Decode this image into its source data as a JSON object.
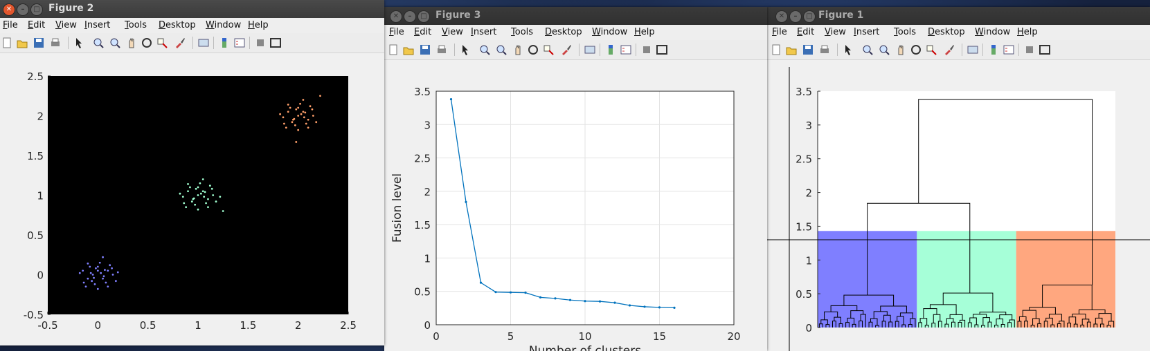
{
  "menu_items": [
    "File",
    "Edit",
    "View",
    "Insert",
    "Tools",
    "Desktop",
    "Window",
    "Help"
  ],
  "icons": [
    "new-icon",
    "open-icon",
    "save-icon",
    "print-icon",
    "pointer-icon",
    "zoom-in-icon",
    "zoom-out-icon",
    "pan-icon",
    "rotate-icon",
    "data-cursor-icon",
    "brush-icon",
    "link-icon",
    "colorbar-icon",
    "legend-icon",
    "hide-tools-icon",
    "show-tools-icon"
  ],
  "figure2": {
    "title": "Figure 2",
    "chart_data": {
      "type": "scatter",
      "background": "#000000",
      "xlim": [
        -0.5,
        2.5
      ],
      "ylim": [
        -0.5,
        2.5
      ],
      "xticks": [
        -0.5,
        0,
        0.5,
        1,
        1.5,
        2,
        2.5
      ],
      "yticks": [
        -0.5,
        0,
        0.5,
        1,
        1.5,
        2,
        2.5
      ],
      "xtick_labels": [
        "-0.5",
        "0",
        "0.5",
        "1",
        "1.5",
        "2",
        "2.5"
      ],
      "ytick_labels": [
        "-0.5",
        "0",
        "0.5",
        "1",
        "1.5",
        "2",
        "2.5"
      ],
      "series": [
        {
          "color": "#8080ff",
          "points": [
            [
              0.0,
              0.05
            ],
            [
              -0.05,
              0.0
            ],
            [
              0.05,
              -0.05
            ],
            [
              0.1,
              0.05
            ],
            [
              -0.1,
              -0.05
            ],
            [
              0.02,
              0.15
            ],
            [
              -0.03,
              -0.12
            ],
            [
              0.15,
              0.0
            ],
            [
              -0.15,
              0.05
            ],
            [
              0.08,
              -0.1
            ],
            [
              -0.08,
              0.1
            ],
            [
              0.0,
              -0.18
            ],
            [
              0.12,
              0.12
            ],
            [
              -0.12,
              -0.15
            ],
            [
              0.05,
              0.22
            ],
            [
              -0.18,
              0.02
            ],
            [
              0.18,
              -0.08
            ],
            [
              0.03,
              0.02
            ],
            [
              -0.02,
              0.08
            ],
            [
              0.06,
              -0.02
            ],
            [
              -0.06,
              -0.08
            ],
            [
              0.1,
              -0.15
            ],
            [
              -0.1,
              0.14
            ],
            [
              0.2,
              0.03
            ],
            [
              0.0,
              0.1
            ],
            [
              -0.04,
              -0.04
            ],
            [
              0.14,
              0.08
            ],
            [
              -0.14,
              -0.1
            ],
            [
              0.07,
              0.06
            ],
            [
              -0.07,
              0.02
            ]
          ]
        },
        {
          "color": "#a0ffd0",
          "points": [
            [
              1.0,
              1.0
            ],
            [
              0.95,
              0.95
            ],
            [
              1.05,
              1.05
            ],
            [
              1.1,
              0.95
            ],
            [
              0.9,
              1.05
            ],
            [
              1.02,
              1.15
            ],
            [
              0.97,
              0.88
            ],
            [
              1.15,
              1.0
            ],
            [
              0.85,
              0.98
            ],
            [
              1.08,
              0.9
            ],
            [
              0.92,
              1.1
            ],
            [
              1.0,
              0.82
            ],
            [
              1.12,
              1.12
            ],
            [
              0.88,
              0.85
            ],
            [
              1.05,
              1.2
            ],
            [
              0.82,
              1.02
            ],
            [
              1.18,
              0.92
            ],
            [
              1.03,
              1.02
            ],
            [
              0.98,
              1.08
            ],
            [
              1.06,
              0.98
            ],
            [
              0.94,
              0.92
            ],
            [
              1.1,
              0.85
            ],
            [
              0.9,
              1.14
            ],
            [
              1.22,
              0.98
            ],
            [
              1.0,
              1.1
            ],
            [
              0.96,
              0.96
            ],
            [
              1.14,
              1.08
            ],
            [
              0.86,
              0.9
            ],
            [
              1.25,
              0.8
            ],
            [
              1.07,
              1.04
            ]
          ]
        },
        {
          "color": "#ff9f6a",
          "points": [
            [
              2.0,
              2.0
            ],
            [
              1.95,
              1.95
            ],
            [
              2.05,
              2.05
            ],
            [
              2.1,
              1.95
            ],
            [
              1.9,
              2.05
            ],
            [
              2.02,
              2.15
            ],
            [
              1.97,
              1.88
            ],
            [
              2.15,
              2.0
            ],
            [
              1.85,
              1.98
            ],
            [
              2.08,
              1.9
            ],
            [
              1.92,
              2.1
            ],
            [
              2.0,
              1.82
            ],
            [
              2.12,
              2.12
            ],
            [
              1.88,
              1.85
            ],
            [
              2.05,
              2.2
            ],
            [
              1.82,
              2.02
            ],
            [
              2.18,
              1.92
            ],
            [
              2.03,
              2.02
            ],
            [
              1.98,
              2.08
            ],
            [
              2.06,
              1.98
            ],
            [
              1.94,
              1.92
            ],
            [
              2.1,
              1.85
            ],
            [
              1.9,
              2.14
            ],
            [
              2.22,
              2.25
            ],
            [
              2.0,
              2.1
            ],
            [
              1.96,
              1.96
            ],
            [
              2.14,
              2.08
            ],
            [
              1.86,
              1.9
            ],
            [
              1.98,
              1.67
            ],
            [
              2.07,
              2.04
            ]
          ]
        }
      ]
    }
  },
  "figure3": {
    "title": "Figure 3",
    "chart_data": {
      "type": "line",
      "xlabel": "Number of clusters",
      "ylabel": "Fusion level",
      "xlim": [
        0,
        20
      ],
      "ylim": [
        0,
        3.5
      ],
      "grid": true,
      "xticks": [
        0,
        5,
        10,
        15,
        20
      ],
      "yticks": [
        0,
        0.5,
        1,
        1.5,
        2,
        2.5,
        3,
        3.5
      ],
      "xtick_labels": [
        "0",
        "5",
        "10",
        "15",
        "20"
      ],
      "ytick_labels": [
        "0",
        "0.5",
        "1",
        "1.5",
        "2",
        "2.5",
        "3",
        "3.5"
      ],
      "x": [
        1,
        2,
        3,
        4,
        5,
        6,
        7,
        8,
        9,
        10,
        11,
        12,
        13,
        14,
        15,
        16
      ],
      "y": [
        3.38,
        1.84,
        0.63,
        0.49,
        0.485,
        0.48,
        0.41,
        0.395,
        0.37,
        0.355,
        0.35,
        0.33,
        0.29,
        0.27,
        0.26,
        0.255
      ],
      "line_color": "#0072bd"
    }
  },
  "figure1": {
    "title": "Figure 1",
    "chart_data": {
      "type": "dendrogram",
      "xlim": [
        0,
        90
      ],
      "ylim": [
        0,
        3.5
      ],
      "yticks": [
        0,
        0.5,
        1,
        1.5,
        2,
        2.5,
        3,
        3.5
      ],
      "ytick_labels": [
        "0",
        "0.5",
        "1",
        "1.5",
        "2",
        "2.5",
        "3",
        "3.5"
      ],
      "cutoff": 1.43,
      "cluster_bands": [
        {
          "x0": 0,
          "x1": 30,
          "color": "#7f7fff"
        },
        {
          "x0": 30,
          "x1": 60,
          "color": "#a6ffd8"
        },
        {
          "x0": 60,
          "x1": 90,
          "color": "#ffa77f"
        }
      ],
      "top_merges": [
        {
          "x0": 15,
          "x1": 46,
          "h0a": 0.48,
          "h0b": 0.51,
          "y": 1.84
        },
        {
          "x0": 30.5,
          "x1": 83,
          "h0a": 1.84,
          "h0b": 0.63,
          "y": 3.38
        }
      ],
      "cluster_merges": [
        {
          "x0": 6,
          "x1": 22,
          "y": 0.48
        },
        {
          "x0": 37,
          "x1": 52,
          "y": 0.51
        },
        {
          "x0": 68,
          "x1": 83,
          "y": 0.63
        }
      ],
      "crosshair": {
        "x": -9,
        "y": 1.3
      }
    }
  }
}
